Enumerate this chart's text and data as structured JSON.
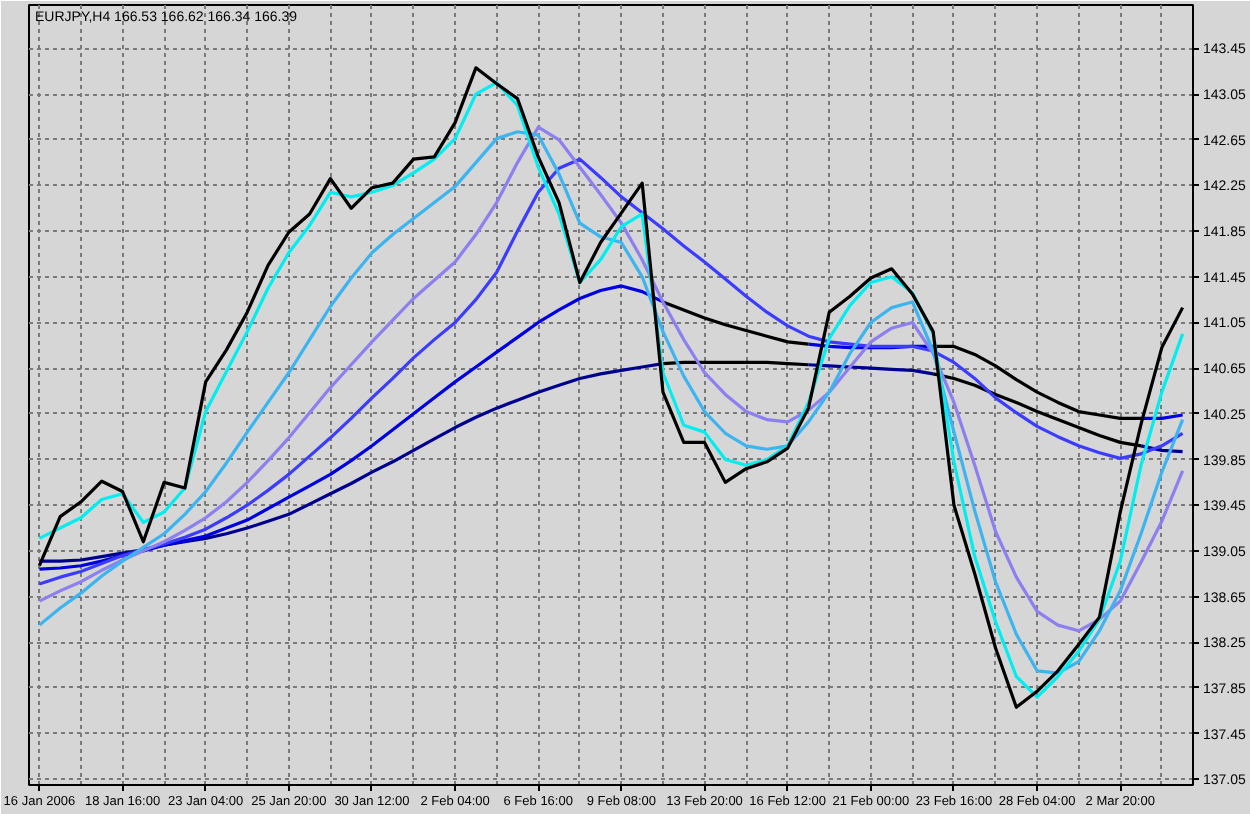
{
  "chart_data": {
    "type": "line",
    "title": "EURJPY,H4 166.53 166.62 166.34 166.39",
    "categories": [
      "16 Jan 2006",
      null,
      null,
      null,
      "18 Jan 16:00",
      null,
      null,
      null,
      "23 Jan 04:00",
      null,
      null,
      null,
      "25 Jan 20:00",
      null,
      null,
      null,
      "30 Jan 12:00",
      null,
      null,
      null,
      "2 Feb 04:00",
      null,
      null,
      null,
      "6 Feb 16:00",
      null,
      null,
      null,
      "9 Feb 08:00",
      null,
      null,
      null,
      "13 Feb 20:00",
      null,
      null,
      null,
      "16 Feb 12:00",
      null,
      null,
      null,
      "21 Feb 00:00",
      null,
      null,
      null,
      "23 Feb 16:00",
      null,
      null,
      null,
      "28 Feb 04:00",
      null,
      null,
      null,
      "2 Mar 20:00",
      null,
      null,
      null
    ],
    "ylim": [
      137.0,
      143.83
    ],
    "yticks": [
      137.05,
      137.45,
      137.85,
      138.25,
      138.65,
      139.05,
      139.45,
      139.85,
      140.25,
      140.65,
      141.05,
      141.45,
      141.85,
      142.25,
      142.65,
      143.05,
      143.45
    ],
    "grid": true,
    "series": [
      {
        "color": "#000090",
        "values": [
          138.96,
          138.96,
          138.97,
          139.0,
          139.03,
          139.06,
          139.1,
          139.13,
          139.16,
          139.2,
          139.25,
          139.31,
          139.37,
          139.46,
          139.55,
          139.64,
          139.74,
          139.83,
          139.93,
          140.03,
          140.13,
          140.22,
          140.3,
          140.37,
          140.44,
          140.5,
          140.56,
          140.6,
          140.63,
          140.66,
          140.69,
          null,
          null,
          null,
          null,
          null,
          null,
          140.68,
          140.67,
          140.66,
          140.65,
          140.64,
          140.63,
          140.6,
          null,
          null,
          null,
          null,
          null,
          null,
          null,
          null,
          null,
          139.97,
          139.93,
          139.92
        ]
      },
      {
        "color": "#000000",
        "values": [
          null,
          null,
          null,
          null,
          null,
          null,
          null,
          null,
          null,
          null,
          null,
          null,
          null,
          null,
          null,
          null,
          null,
          null,
          null,
          null,
          null,
          null,
          null,
          null,
          null,
          null,
          null,
          null,
          null,
          null,
          140.69,
          140.7,
          140.7,
          140.7,
          140.7,
          140.7,
          140.69,
          140.68,
          null,
          null,
          null,
          null,
          null,
          140.6,
          140.56,
          140.5,
          140.42,
          140.35,
          140.27,
          140.2,
          140.13,
          140.06,
          140.0,
          139.97,
          null,
          null
        ]
      },
      {
        "color": "#0000e0",
        "values": [
          138.89,
          138.9,
          138.92,
          138.96,
          139.01,
          139.05,
          139.1,
          139.14,
          139.18,
          139.25,
          139.32,
          139.42,
          139.52,
          139.62,
          139.72,
          139.84,
          139.97,
          140.11,
          140.25,
          140.39,
          140.53,
          140.66,
          140.79,
          140.92,
          141.05,
          141.16,
          141.26,
          141.33,
          141.37,
          141.32,
          141.23,
          null,
          null,
          null,
          null,
          null,
          null,
          140.86,
          140.84,
          140.83,
          140.83,
          140.83,
          140.84,
          140.84,
          null,
          null,
          null,
          null,
          null,
          null,
          null,
          null,
          null,
          140.21,
          140.21,
          140.24
        ]
      },
      {
        "color": "#000000",
        "values": [
          null,
          null,
          null,
          null,
          null,
          null,
          null,
          null,
          null,
          null,
          null,
          null,
          null,
          null,
          null,
          null,
          null,
          null,
          null,
          null,
          null,
          null,
          null,
          null,
          null,
          null,
          null,
          null,
          null,
          null,
          141.23,
          141.16,
          141.09,
          141.03,
          140.98,
          140.93,
          140.88,
          140.86,
          null,
          null,
          null,
          null,
          null,
          140.84,
          140.84,
          140.77,
          140.67,
          140.55,
          140.44,
          140.35,
          140.27,
          140.24,
          140.21,
          140.21,
          null,
          null
        ]
      },
      {
        "color": "#3c3cff",
        "values": [
          138.76,
          138.82,
          138.87,
          138.94,
          139.01,
          139.06,
          139.11,
          139.17,
          139.24,
          139.34,
          139.45,
          139.58,
          139.72,
          139.88,
          140.04,
          140.21,
          140.39,
          140.56,
          140.74,
          140.9,
          141.05,
          141.25,
          141.49,
          141.85,
          142.19,
          142.4,
          142.48,
          142.32,
          142.15,
          142.01,
          141.87,
          141.72,
          141.58,
          141.43,
          141.28,
          141.14,
          141.02,
          140.93,
          140.88,
          140.86,
          140.84,
          140.84,
          140.84,
          140.8,
          140.7,
          140.56,
          140.39,
          140.26,
          140.14,
          140.05,
          139.97,
          139.91,
          139.86,
          139.9,
          139.97,
          140.08
        ]
      },
      {
        "color": "#8c7ff0",
        "values": [
          138.61,
          138.7,
          138.78,
          138.88,
          138.97,
          139.05,
          139.13,
          139.23,
          139.34,
          139.48,
          139.65,
          139.84,
          140.04,
          140.26,
          140.48,
          140.68,
          140.88,
          141.07,
          141.26,
          141.42,
          141.58,
          141.82,
          142.1,
          142.45,
          142.76,
          142.65,
          142.41,
          142.17,
          141.92,
          141.6,
          141.23,
          140.9,
          140.61,
          140.42,
          140.27,
          140.2,
          140.18,
          140.28,
          140.44,
          140.66,
          140.88,
          141.0,
          141.05,
          140.78,
          140.35,
          139.8,
          139.22,
          138.82,
          138.52,
          138.4,
          138.35,
          138.45,
          138.61,
          138.95,
          139.31,
          139.75
        ]
      },
      {
        "color": "#3cb4f0",
        "values": [
          138.4,
          138.55,
          138.68,
          138.83,
          138.96,
          139.08,
          139.2,
          139.37,
          139.57,
          139.82,
          140.09,
          140.35,
          140.61,
          140.9,
          141.19,
          141.44,
          141.66,
          141.82,
          141.96,
          142.1,
          142.24,
          142.45,
          142.66,
          142.72,
          142.69,
          142.35,
          141.92,
          141.8,
          141.75,
          141.45,
          140.97,
          140.58,
          140.27,
          140.08,
          139.97,
          139.94,
          139.97,
          140.18,
          140.44,
          140.78,
          141.05,
          141.18,
          141.23,
          140.8,
          140.09,
          139.4,
          138.78,
          138.32,
          138.0,
          137.98,
          138.08,
          138.35,
          138.7,
          139.2,
          139.74,
          140.2
        ]
      },
      {
        "color": "#00eef0",
        "values": [
          139.16,
          139.25,
          139.34,
          139.5,
          139.55,
          139.3,
          139.39,
          139.6,
          140.27,
          140.62,
          140.97,
          141.35,
          141.66,
          141.9,
          142.19,
          142.15,
          142.19,
          142.25,
          142.36,
          142.48,
          142.66,
          143.05,
          143.15,
          142.95,
          142.41,
          142.0,
          141.4,
          141.6,
          141.89,
          142.0,
          140.61,
          140.15,
          140.09,
          139.85,
          139.8,
          139.85,
          139.97,
          140.35,
          140.91,
          141.2,
          141.4,
          141.45,
          141.31,
          140.95,
          139.83,
          139.0,
          138.43,
          137.95,
          137.77,
          137.95,
          138.17,
          138.45,
          138.96,
          139.8,
          140.44,
          140.95
        ]
      },
      {
        "color": "#000000",
        "values": [
          138.92,
          139.35,
          139.48,
          139.66,
          139.57,
          139.13,
          139.65,
          139.6,
          140.53,
          140.81,
          141.14,
          141.55,
          141.84,
          142.0,
          142.31,
          142.05,
          142.23,
          142.27,
          142.48,
          142.5,
          142.8,
          143.28,
          143.14,
          143.01,
          142.5,
          142.1,
          141.4,
          141.75,
          142.01,
          142.27,
          140.44,
          140.0,
          140.0,
          139.65,
          139.77,
          139.83,
          139.95,
          140.3,
          141.14,
          141.28,
          141.44,
          141.52,
          141.3,
          140.97,
          139.45,
          138.85,
          138.2,
          137.68,
          137.82,
          138.0,
          138.23,
          138.47,
          139.39,
          140.16,
          140.83,
          141.18
        ]
      }
    ]
  }
}
